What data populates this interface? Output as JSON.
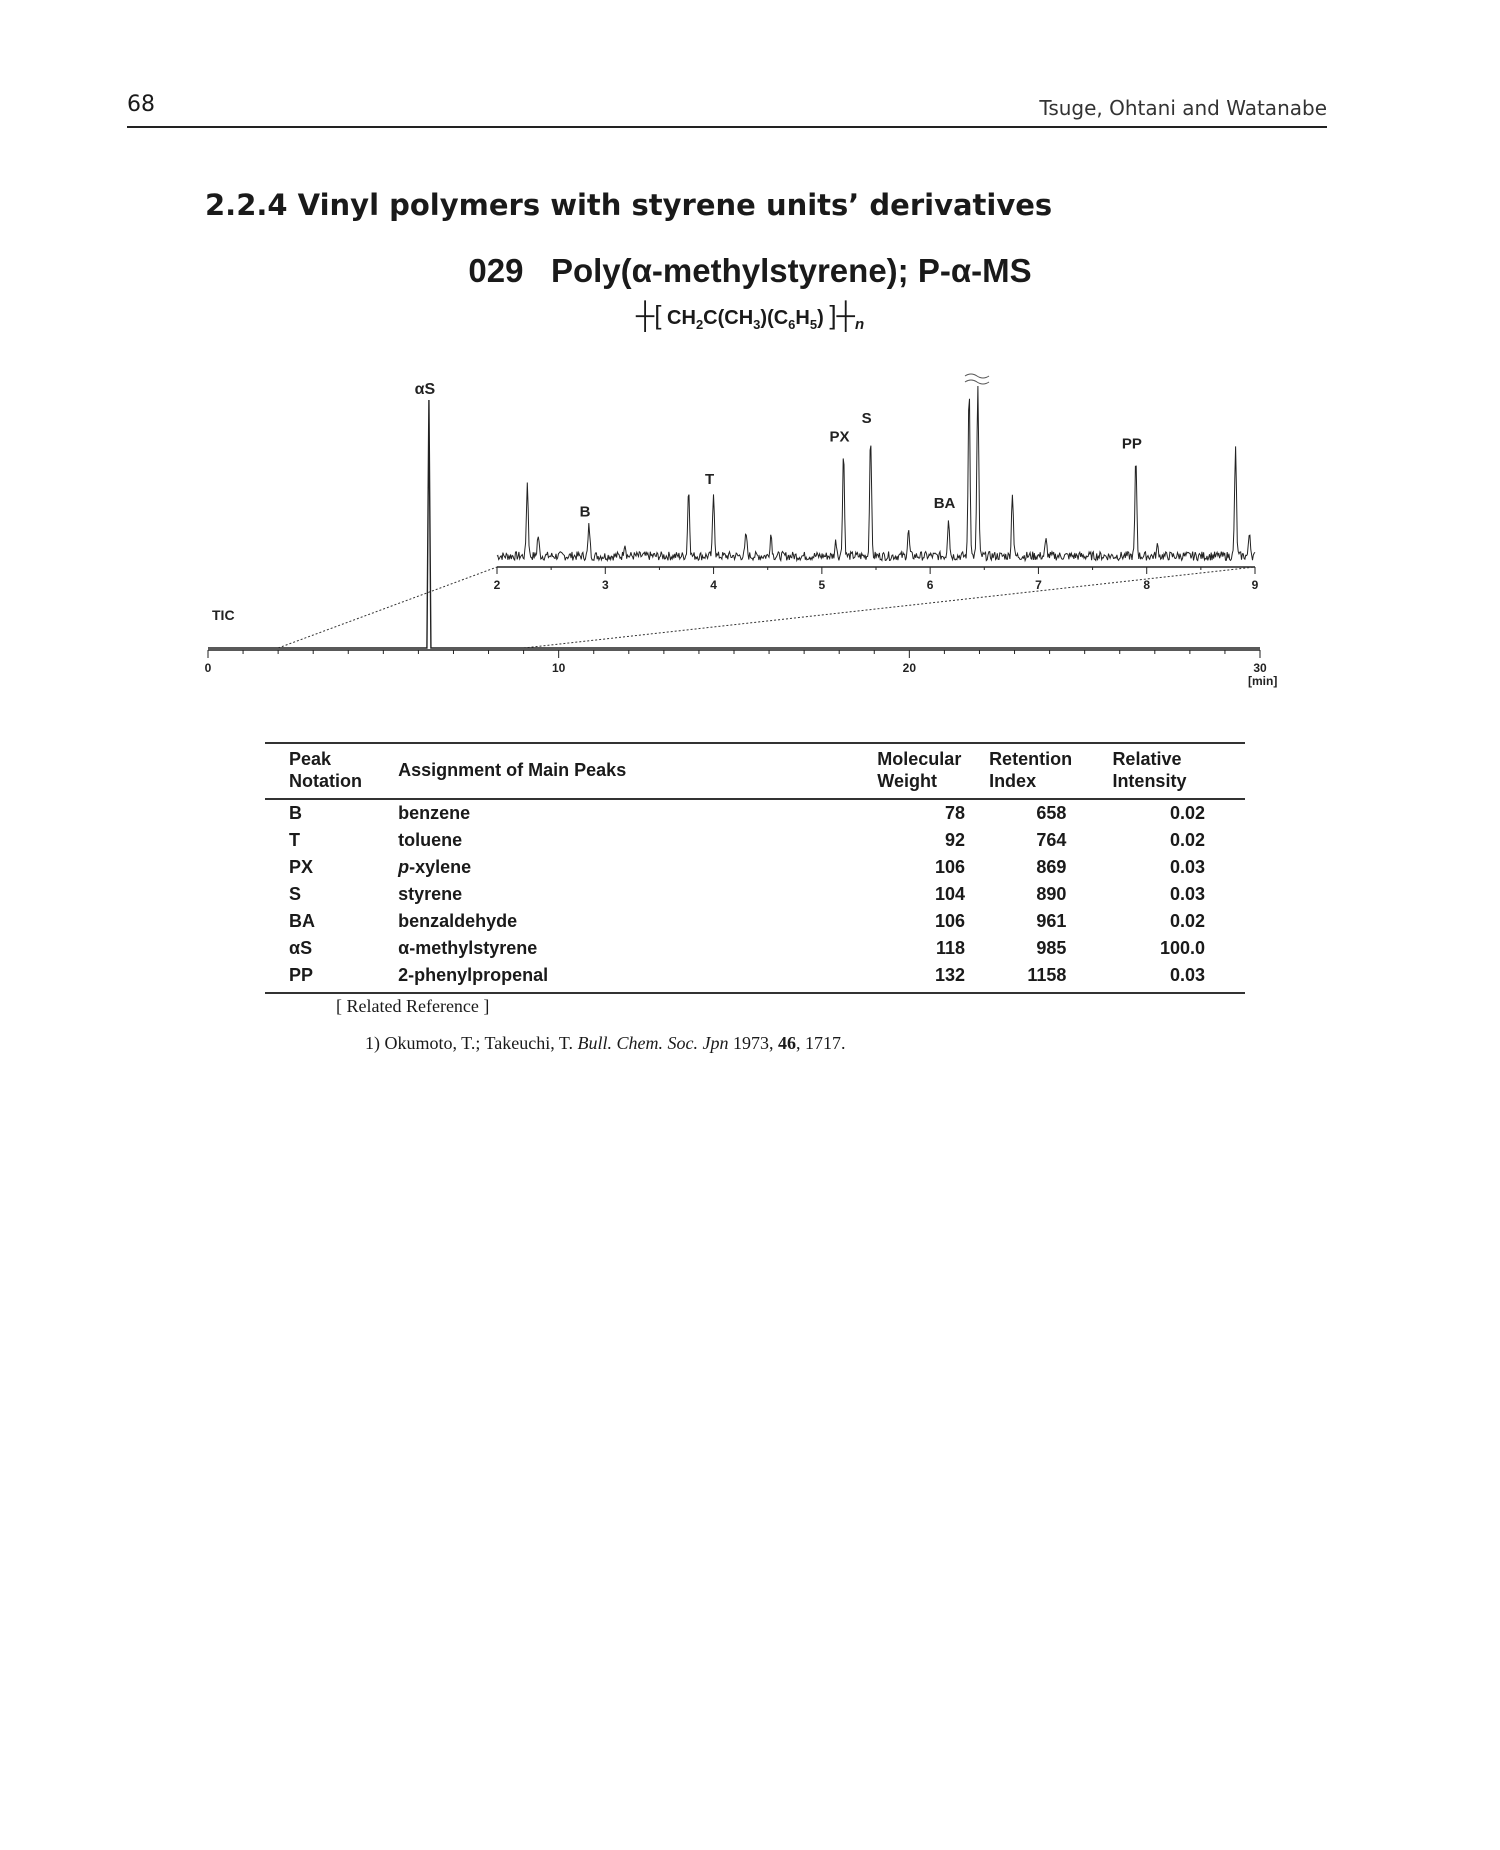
{
  "header": {
    "page_number": "68",
    "running_head": "Tsuge, Ohtani and Watanabe"
  },
  "section": {
    "title": "2.2.4 Vinyl polymers with styrene units’ derivatives"
  },
  "compound": {
    "number": "029",
    "name": "Poly(α-methylstyrene); P-α-MS",
    "formula_main": "CH",
    "formula_sub1": "2",
    "formula_mid1": "C(CH",
    "formula_sub2": "3",
    "formula_mid2": ")(C",
    "formula_sub3": "6",
    "formula_mid3": "H",
    "formula_sub4": "5",
    "formula_end": ")",
    "formula_n": "n"
  },
  "chart_data": {
    "type": "line",
    "title": "",
    "main_trace": {
      "label": "TIC",
      "x_unit": "[min]",
      "xlim": [
        0,
        30
      ],
      "x_ticks": [
        "0",
        "10",
        "20",
        "30"
      ],
      "peaks": [
        {
          "name": "αS",
          "x": 6.3,
          "relative_height": 1.0
        }
      ]
    },
    "inset_trace": {
      "xlim": [
        2,
        9
      ],
      "x_ticks": [
        "2",
        "3",
        "4",
        "5",
        "6",
        "7",
        "8",
        "9"
      ],
      "labeled_peaks": [
        {
          "name": "B",
          "x": 2.85,
          "relative_height": 0.18
        },
        {
          "name": "T",
          "x": 4.0,
          "relative_height": 0.37
        },
        {
          "name": "PX",
          "x": 5.2,
          "relative_height": 0.62
        },
        {
          "name": "S",
          "x": 5.45,
          "relative_height": 0.73
        },
        {
          "name": "BA",
          "x": 6.17,
          "relative_height": 0.23
        },
        {
          "name": "PP",
          "x": 7.9,
          "relative_height": 0.58
        }
      ],
      "other_peaks": [
        {
          "x": 2.28,
          "relative_height": 0.43
        },
        {
          "x": 2.38,
          "relative_height": 0.12
        },
        {
          "x": 3.18,
          "relative_height": 0.08
        },
        {
          "x": 3.77,
          "relative_height": 0.4
        },
        {
          "x": 4.3,
          "relative_height": 0.13
        },
        {
          "x": 4.53,
          "relative_height": 0.13
        },
        {
          "x": 5.13,
          "relative_height": 0.09
        },
        {
          "x": 5.8,
          "relative_height": 0.15
        },
        {
          "x": 6.36,
          "relative_height": 1.0
        },
        {
          "x": 6.44,
          "relative_height": 1.0
        },
        {
          "x": 6.76,
          "relative_height": 0.38
        },
        {
          "x": 7.07,
          "relative_height": 0.09
        },
        {
          "x": 8.1,
          "relative_height": 0.06
        },
        {
          "x": 8.82,
          "relative_height": 0.63
        },
        {
          "x": 8.95,
          "relative_height": 0.14
        }
      ]
    }
  },
  "table": {
    "headers": {
      "peak_line1": "Peak",
      "peak_line2": "Notation",
      "assignment": "Assignment of Main Peaks",
      "mw_line1": "Molecular",
      "mw_line2": "Weight",
      "ri_line1": "Retention",
      "ri_line2": "Index",
      "ri_int1": "Relative",
      "ri_int2": "Intensity"
    },
    "rows": [
      {
        "peak": "B",
        "assignment": "benzene",
        "mw": "78",
        "ri": "658",
        "intensity": "0.02"
      },
      {
        "peak": "T",
        "assignment": "toluene",
        "mw": "92",
        "ri": "764",
        "intensity": "0.02"
      },
      {
        "peak": "PX",
        "assignment_prefix": "p",
        "assignment": "-xylene",
        "mw": "106",
        "ri": "869",
        "intensity": "0.03"
      },
      {
        "peak": "S",
        "assignment": "styrene",
        "mw": "104",
        "ri": "890",
        "intensity": "0.03"
      },
      {
        "peak": "BA",
        "assignment": "benzaldehyde",
        "mw": "106",
        "ri": "961",
        "intensity": "0.02"
      },
      {
        "peak": "αS",
        "assignment": "α-methylstyrene",
        "mw": "118",
        "ri": "985",
        "intensity": "100.0"
      },
      {
        "peak": "PP",
        "assignment": "2-phenylpropenal",
        "mw": "132",
        "ri": "1158",
        "intensity": "0.03"
      }
    ]
  },
  "references": {
    "heading": "[ Related Reference ]",
    "item": {
      "prefix": "1) Okumoto, T.; Takeuchi, T. ",
      "journal": "Bull. Chem. Soc. Jpn",
      "year": " 1973, ",
      "volume": "46",
      "pages": ", 1717."
    }
  }
}
